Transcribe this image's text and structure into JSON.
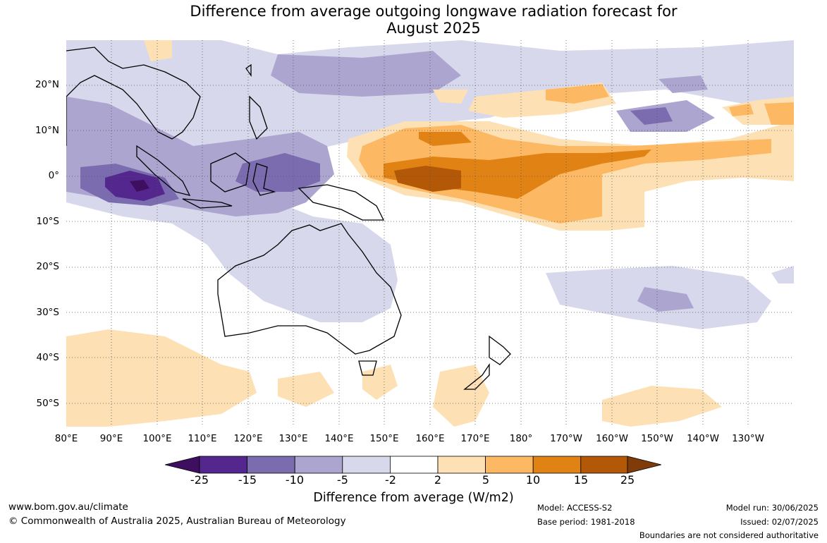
{
  "title_line1": "Difference from average outgoing longwave radiation forecast for",
  "title_line2": "August 2025",
  "lat_labels": [
    "20°N",
    "10°N",
    "0°",
    "10°S",
    "20°S",
    "30°S",
    "40°S",
    "50°S"
  ],
  "lon_labels": [
    "80°E",
    "90°E",
    "100°E",
    "110°E",
    "120°E",
    "130°E",
    "140°E",
    "150°E",
    "160°E",
    "170°E",
    "180°",
    "170°W",
    "160°W",
    "150°W",
    "140°W",
    "130°W"
  ],
  "legend": {
    "ticks": [
      "-25",
      "-15",
      "-10",
      "-5",
      "-2",
      "2",
      "5",
      "10",
      "15",
      "25"
    ],
    "colors": [
      "#3f0f5f",
      "#54278f",
      "#7b6cb0",
      "#aba5d0",
      "#d8d8ec",
      "#ffffff",
      "#fde1b4",
      "#fdb863",
      "#e08214",
      "#b35806",
      "#7f3b08"
    ],
    "title": "Difference from average (W/m2)"
  },
  "footer": {
    "website": "www.bom.gov.au/climate",
    "copyright": "© Commonwealth of Australia 2025, Australian Bureau of Meteorology",
    "model": "Model: ACCESS-S2",
    "base_period": "Base period: 1981-2018",
    "model_run": "Model run: 30/06/2025",
    "issued": "Issued: 02/07/2025",
    "disclaimer": "Boundaries are not considered authoritative"
  }
}
